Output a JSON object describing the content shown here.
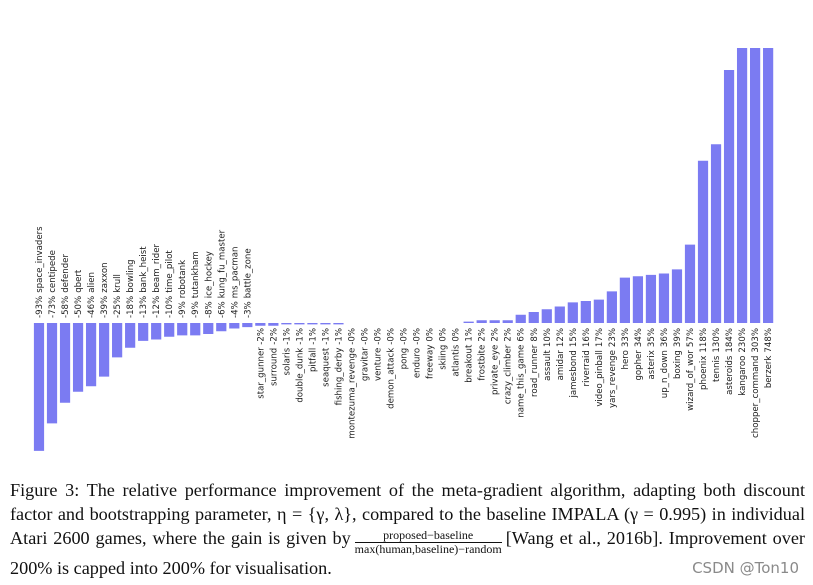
{
  "chart_data": {
    "type": "bar",
    "categories": [
      "space_invaders",
      "centipede",
      "defender",
      "qbert",
      "alien",
      "zaxxon",
      "krull",
      "bowling",
      "bank_heist",
      "beam_rider",
      "time_pilot",
      "robotank",
      "tutankham",
      "ice_hockey",
      "kung_fu_master",
      "ms_pacman",
      "battle_zone",
      "star_gunner",
      "surround",
      "solaris",
      "double_dunk",
      "pitfall",
      "seaquest",
      "fishing_derby",
      "montezuma_revenge",
      "gravitar",
      "venture",
      "demon_attack",
      "pong",
      "enduro",
      "freeway",
      "skiing",
      "atlantis",
      "breakout",
      "frostbite",
      "private_eye",
      "crazy_climber",
      "name_this_game",
      "road_runner",
      "assault",
      "amidar",
      "jamesbond",
      "riverraid",
      "video_pinball",
      "yars_revenge",
      "hero",
      "gopher",
      "asterix",
      "up_n_down",
      "boxing",
      "wizard_of_wor",
      "phoenix",
      "tennis",
      "asteroids",
      "kangaroo",
      "chopper_command",
      "berzerk"
    ],
    "values": [
      -93,
      -73,
      -58,
      -50,
      -46,
      -39,
      -25,
      -18,
      -13,
      -12,
      -10,
      -9,
      -9,
      -8,
      -6,
      -4,
      -3,
      -2,
      -2,
      -1,
      -1,
      -1,
      -1,
      -1,
      0,
      0,
      0,
      0,
      0,
      0,
      0,
      0,
      0,
      1,
      2,
      2,
      2,
      6,
      8,
      10,
      12,
      15,
      16,
      17,
      23,
      33,
      34,
      35,
      36,
      39,
      57,
      118,
      130,
      184,
      230,
      303,
      748
    ],
    "value_labels": [
      "-93%",
      "-73%",
      "-58%",
      "-50%",
      "-46%",
      "-39%",
      "-25%",
      "-18%",
      "-13%",
      "-12%",
      "-10%",
      "-9%",
      "-9%",
      "-8%",
      "-6%",
      "-4%",
      "-3%",
      "-2%",
      "-2%",
      "-1%",
      "-1%",
      "-1%",
      "-1%",
      "-1%",
      "-0%",
      "-0%",
      "-0%",
      "-0%",
      "-0%",
      "-0%",
      "0%",
      "0%",
      "0%",
      "1%",
      "2%",
      "2%",
      "2%",
      "6%",
      "8%",
      "10%",
      "12%",
      "15%",
      "16%",
      "17%",
      "23%",
      "33%",
      "34%",
      "35%",
      "36%",
      "39%",
      "57%",
      "118%",
      "130%",
      "184%",
      "230%",
      "303%",
      "748%"
    ],
    "color": "#7b7bf2",
    "ylim": [
      -100,
      200
    ]
  },
  "caption": {
    "before": "Figure 3: The relative performance improvement of the meta-gradient algorithm, adapting both discount factor and bootstrapping parameter, η = {γ, λ}, compared to the baseline IMPALA (γ = 0.995) in individual Atari 2600 games, where the gain is given by",
    "numerator": "proposed−baseline",
    "denominator": "max(human,baseline)−random",
    "after": "[Wang et al., 2016b]. Improvement over 200% is capped into 200% for visualisation."
  },
  "watermark": "CSDN @Ton10"
}
